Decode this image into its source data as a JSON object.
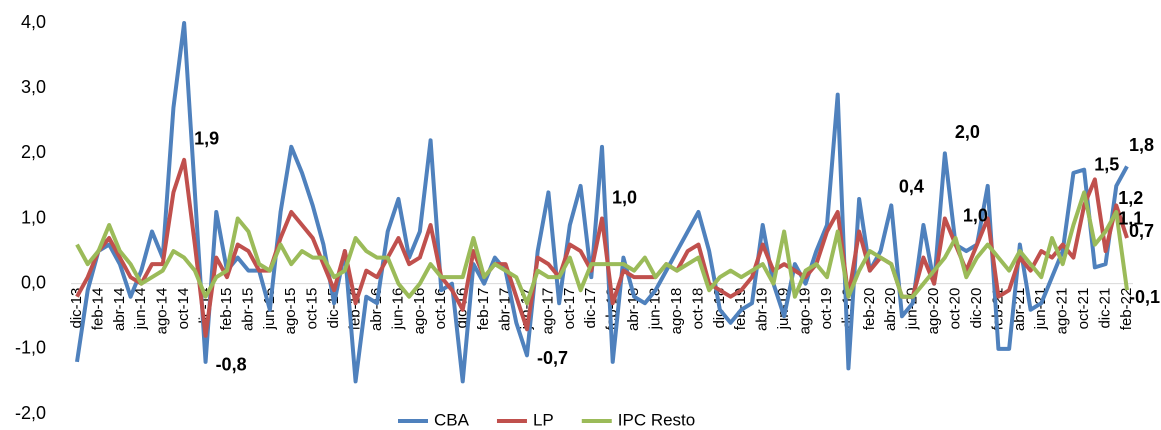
{
  "chart_data": {
    "type": "line",
    "categories": [
      "dic-13",
      null,
      "feb-14",
      null,
      "abr-14",
      null,
      "jun-14",
      null,
      "ago-14",
      null,
      "oct-14",
      null,
      "dic-14",
      null,
      "feb-15",
      null,
      "abr-15",
      null,
      "jun-15",
      null,
      "ago-15",
      null,
      "oct-15",
      null,
      "dic-15",
      null,
      "feb-16",
      null,
      "abr-16",
      null,
      "jun-16",
      null,
      "ago-16",
      null,
      "oct-16",
      null,
      "dic-16",
      null,
      "feb-17",
      null,
      "abr-17",
      null,
      "jun-17",
      null,
      "ago-17",
      null,
      "oct-17",
      null,
      "dic-17",
      null,
      "feb-18",
      null,
      "abr-18",
      null,
      "jun-18",
      null,
      "ago-18",
      null,
      "oct-18",
      null,
      "dic-18",
      null,
      "feb-19",
      null,
      "abr-19",
      null,
      "jun-19",
      null,
      "ago-19",
      null,
      "oct-19",
      null,
      "dic-19",
      null,
      "feb-20",
      null,
      "abr-20",
      null,
      "jun-20",
      null,
      "ago-20",
      null,
      "oct-20",
      null,
      "dic-20",
      null,
      "feb-21",
      null,
      "abr-21",
      null,
      "jun-21",
      null,
      "ago-21",
      null,
      "oct-21",
      null,
      "dic-21",
      null,
      "feb-22"
    ],
    "series": [
      {
        "name": "CBA",
        "color": "#4f81bd",
        "values": [
          -1.2,
          -0.1,
          0.5,
          0.6,
          0.3,
          -0.2,
          0.2,
          0.8,
          0.4,
          2.7,
          4.0,
          1.4,
          -1.2,
          1.1,
          0.2,
          0.4,
          0.2,
          0.2,
          -0.4,
          1.1,
          2.1,
          1.7,
          1.2,
          0.6,
          -0.3,
          0.5,
          -1.5,
          -0.2,
          -0.3,
          0.8,
          1.3,
          0.4,
          0.8,
          2.2,
          -0.1,
          0.0,
          -1.5,
          0.3,
          0.0,
          0.4,
          0.2,
          -0.6,
          -1.1,
          0.5,
          1.4,
          -0.3,
          0.9,
          1.5,
          0.1,
          2.1,
          -1.2,
          0.4,
          -0.2,
          -0.3,
          -0.1,
          0.2,
          0.5,
          0.8,
          1.1,
          0.5,
          -0.4,
          -0.6,
          -0.4,
          -0.3,
          0.9,
          0.0,
          -0.5,
          0.3,
          0.0,
          0.5,
          0.9,
          2.9,
          -1.3,
          1.3,
          0.2,
          0.5,
          1.2,
          -0.5,
          -0.3,
          0.9,
          0.0,
          2.0,
          0.6,
          0.5,
          0.6,
          1.5,
          -1.0,
          -1.0,
          0.6,
          -0.4,
          -0.3,
          0.1,
          0.5,
          1.7,
          1.75,
          0.25,
          0.3,
          1.5,
          1.8
        ],
        "value_labels": [
          null,
          null,
          null,
          null,
          null,
          null,
          null,
          null,
          null,
          null,
          null,
          null,
          null,
          null,
          null,
          null,
          null,
          null,
          null,
          null,
          null,
          null,
          null,
          null,
          null,
          null,
          null,
          null,
          null,
          null,
          null,
          null,
          null,
          null,
          null,
          null,
          null,
          null,
          null,
          null,
          null,
          null,
          null,
          null,
          null,
          null,
          null,
          null,
          null,
          null,
          null,
          null,
          null,
          null,
          null,
          null,
          null,
          null,
          null,
          null,
          null,
          null,
          null,
          null,
          null,
          null,
          null,
          null,
          null,
          null,
          null,
          null,
          null,
          null,
          null,
          null,
          null,
          null,
          null,
          null,
          null,
          "2,0",
          null,
          null,
          null,
          null,
          null,
          null,
          null,
          null,
          null,
          null,
          null,
          null,
          null,
          null,
          null,
          "1,5",
          "1,8"
        ]
      },
      {
        "name": "LP",
        "color": "#c0504d",
        "values": [
          -0.2,
          0.1,
          0.5,
          0.7,
          0.4,
          0.1,
          0.0,
          0.3,
          0.3,
          1.4,
          1.9,
          0.6,
          -0.8,
          0.4,
          0.1,
          0.6,
          0.5,
          0.2,
          0.2,
          0.7,
          1.1,
          0.9,
          0.7,
          0.3,
          -0.1,
          0.5,
          -0.3,
          0.2,
          0.1,
          0.4,
          0.7,
          0.3,
          0.4,
          0.9,
          0.1,
          -0.1,
          -0.4,
          0.5,
          0.1,
          0.3,
          0.3,
          -0.2,
          -0.7,
          0.4,
          0.3,
          0.1,
          0.6,
          0.5,
          0.2,
          1.0,
          -0.3,
          0.2,
          0.1,
          0.1,
          0.1,
          0.3,
          0.2,
          0.5,
          0.6,
          0.0,
          -0.1,
          -0.2,
          -0.1,
          0.1,
          0.6,
          0.2,
          0.3,
          0.2,
          0.1,
          0.3,
          0.8,
          1.1,
          -0.2,
          0.8,
          0.2,
          0.4,
          0.3,
          -0.2,
          -0.2,
          0.4,
          0.0,
          1.0,
          0.6,
          0.2,
          0.6,
          1.0,
          -0.2,
          -0.1,
          0.4,
          0.2,
          0.5,
          0.4,
          0.6,
          0.4,
          1.2,
          1.6,
          0.5,
          1.2,
          0.7
        ],
        "value_labels": [
          null,
          null,
          null,
          null,
          null,
          null,
          null,
          null,
          null,
          null,
          "1,9",
          null,
          "-0,8",
          null,
          null,
          null,
          null,
          null,
          null,
          null,
          null,
          null,
          null,
          null,
          null,
          null,
          null,
          null,
          null,
          null,
          null,
          null,
          null,
          null,
          null,
          null,
          null,
          null,
          null,
          null,
          null,
          null,
          "-0,7",
          null,
          null,
          null,
          null,
          null,
          null,
          "1,0",
          null,
          null,
          null,
          null,
          null,
          null,
          null,
          null,
          null,
          null,
          null,
          null,
          null,
          null,
          null,
          null,
          null,
          null,
          null,
          null,
          null,
          null,
          null,
          null,
          null,
          null,
          null,
          null,
          null,
          null,
          null,
          "1,0",
          null,
          null,
          null,
          null,
          null,
          null,
          null,
          null,
          null,
          null,
          null,
          null,
          null,
          null,
          null,
          "1,2",
          "0,7"
        ]
      },
      {
        "name": "IPC Resto",
        "color": "#9bbb59",
        "values": [
          0.6,
          0.3,
          0.5,
          0.9,
          0.5,
          0.3,
          0.0,
          0.1,
          0.2,
          0.5,
          0.4,
          0.2,
          -0.2,
          0.1,
          0.2,
          1.0,
          0.8,
          0.3,
          0.2,
          0.6,
          0.3,
          0.5,
          0.4,
          0.4,
          0.1,
          0.2,
          0.7,
          0.5,
          0.4,
          0.4,
          0.0,
          -0.2,
          0.0,
          0.3,
          0.1,
          0.1,
          0.1,
          0.7,
          0.1,
          0.3,
          0.2,
          0.1,
          -0.3,
          0.2,
          0.1,
          0.1,
          0.4,
          -0.1,
          0.3,
          0.3,
          0.3,
          0.3,
          0.2,
          0.4,
          0.1,
          0.3,
          0.2,
          0.3,
          0.4,
          -0.1,
          0.1,
          0.2,
          0.1,
          0.2,
          0.3,
          0.0,
          0.8,
          -0.2,
          0.2,
          0.3,
          0.1,
          0.8,
          -0.2,
          0.2,
          0.5,
          0.4,
          0.3,
          -0.2,
          -0.2,
          0.0,
          0.2,
          0.4,
          0.7,
          0.1,
          0.4,
          0.6,
          0.4,
          0.2,
          0.5,
          0.3,
          0.1,
          0.7,
          0.3,
          0.9,
          1.4,
          0.6,
          0.8,
          1.1,
          -0.1
        ],
        "value_labels": [
          null,
          null,
          null,
          null,
          null,
          null,
          null,
          null,
          null,
          null,
          null,
          null,
          null,
          null,
          null,
          null,
          null,
          null,
          null,
          null,
          null,
          null,
          null,
          null,
          null,
          null,
          null,
          null,
          null,
          null,
          null,
          null,
          null,
          null,
          null,
          null,
          null,
          null,
          null,
          null,
          null,
          null,
          null,
          null,
          null,
          null,
          null,
          null,
          null,
          null,
          null,
          null,
          null,
          null,
          null,
          null,
          null,
          null,
          null,
          null,
          null,
          null,
          null,
          null,
          null,
          null,
          null,
          null,
          null,
          null,
          null,
          null,
          null,
          null,
          null,
          null,
          null,
          null,
          null,
          null,
          null,
          "0,4",
          null,
          null,
          null,
          null,
          null,
          null,
          null,
          null,
          null,
          null,
          null,
          null,
          null,
          null,
          null,
          "1,1",
          "-0,1"
        ]
      }
    ],
    "ylim": [
      -2,
      4
    ],
    "yticks": [
      {
        "value": -2,
        "label": "-2,0"
      },
      {
        "value": -1,
        "label": "-1,0"
      },
      {
        "value": 0,
        "label": "0,0"
      },
      {
        "value": 1,
        "label": "1,0"
      },
      {
        "value": 2,
        "label": "2,0"
      },
      {
        "value": 3,
        "label": "3,0"
      },
      {
        "value": 4,
        "label": "4,0"
      }
    ],
    "grid": false,
    "legend": "bottom"
  }
}
